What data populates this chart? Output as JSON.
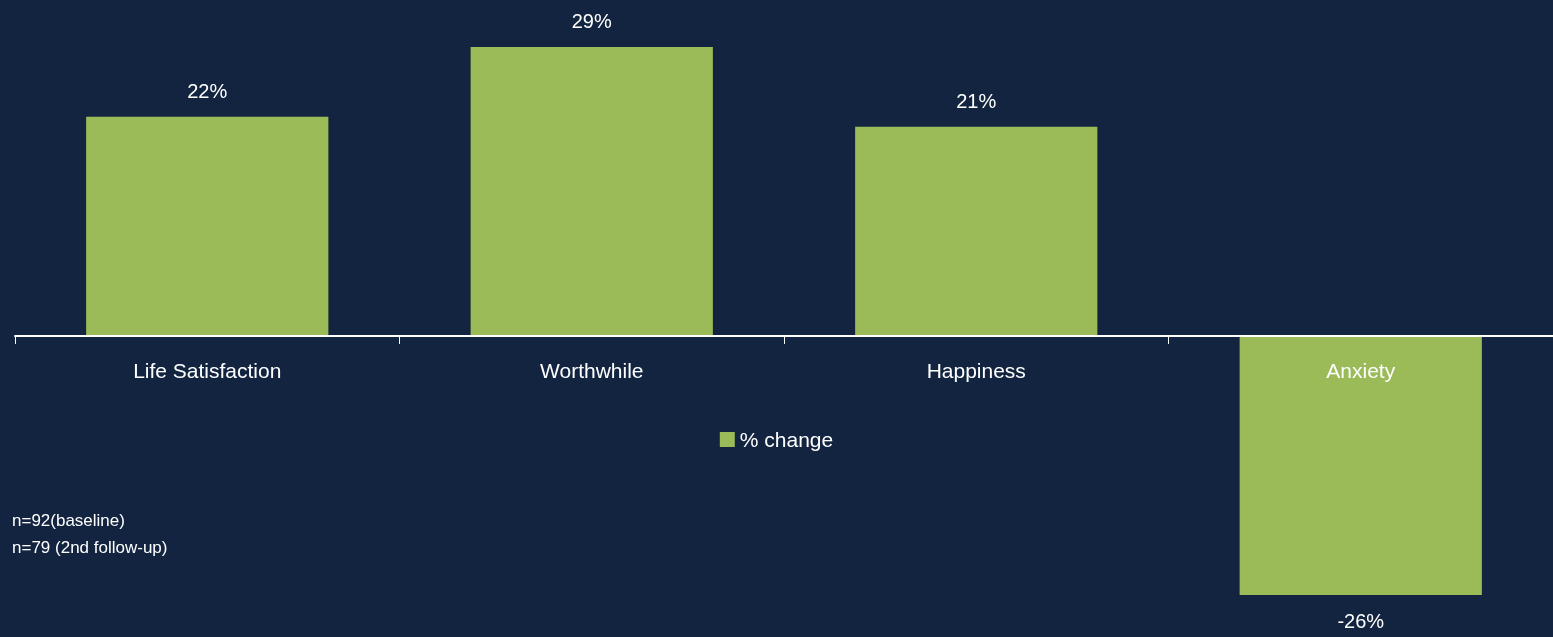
{
  "chart_data": {
    "type": "bar",
    "categories": [
      "Life Satisfaction",
      "Worthwhile",
      "Happiness",
      "Anxiety"
    ],
    "series": [
      {
        "name": "% change",
        "color": "#9bbb59",
        "values": [
          22,
          29,
          21,
          -26
        ],
        "value_labels": [
          "22%",
          "29%",
          "21%",
          "-26%"
        ]
      }
    ],
    "legend": "bottom",
    "annotations": [
      "n=92(baseline)",
      "n=79 (2nd follow-up)"
    ]
  }
}
